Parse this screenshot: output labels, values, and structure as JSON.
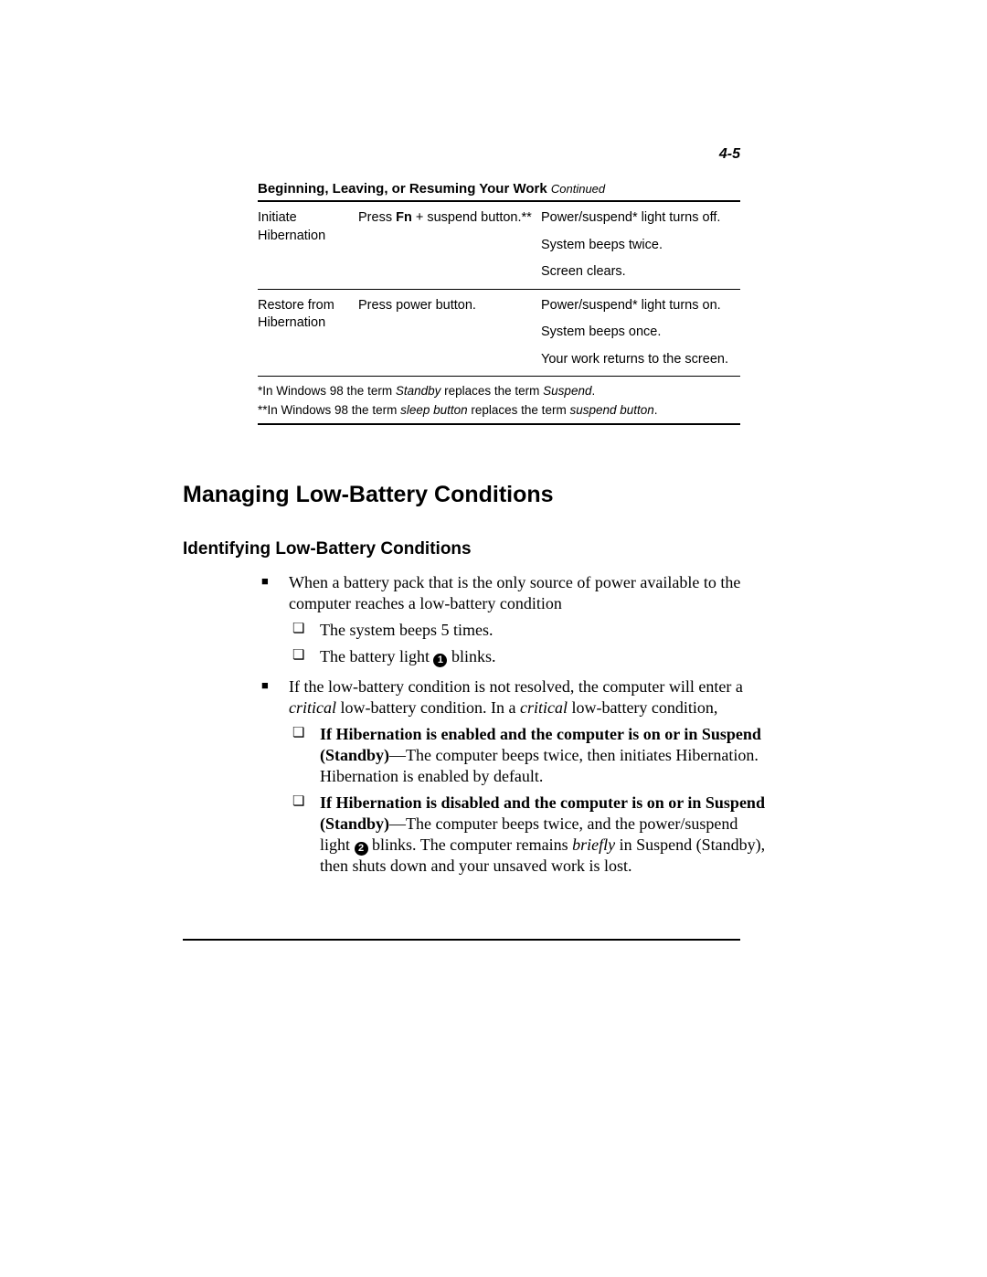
{
  "page_number": "4-5",
  "table": {
    "title": "Beginning, Leaving, or Resuming Your Work",
    "title_suffix": "Continued",
    "rows": [
      {
        "task": "Initiate Hibernation",
        "procedure_pre": "Press ",
        "procedure_bold": "Fn",
        "procedure_post": " + suspend button.**",
        "results": [
          "Power/suspend* light turns off.",
          "System beeps twice.",
          "Screen clears."
        ]
      },
      {
        "task": "Restore from Hibernation",
        "procedure_pre": "Press power button.",
        "procedure_bold": "",
        "procedure_post": "",
        "results": [
          "Power/suspend* light turns on.",
          "System beeps once.",
          "Your work returns to the screen."
        ]
      }
    ],
    "footnote1_pre": "*In Windows 98 the term ",
    "footnote1_it1": "Standby",
    "footnote1_mid": " replaces the term ",
    "footnote1_it2": "Suspend",
    "footnote1_end": ".",
    "footnote2_pre": "**In Windows 98 the term ",
    "footnote2_it1": "sleep button",
    "footnote2_mid": " replaces the term ",
    "footnote2_it2": "suspend button",
    "footnote2_end": "."
  },
  "h1": "Managing Low-Battery Conditions",
  "h2": "Identifying Low-Battery Conditions",
  "bullets": {
    "b1": "When a battery pack that is the only source of power available to the computer reaches a low-battery condition",
    "b1_sub1": "The system beeps 5 times.",
    "b1_sub2_pre": "The battery light ",
    "b1_sub2_num": "1",
    "b1_sub2_post": " blinks.",
    "b2_pre": "If the low-battery condition is not resolved, the computer will enter a ",
    "b2_it1": "critical",
    "b2_mid": " low-battery condition. In a ",
    "b2_it2": "critical",
    "b2_post": " low-battery condition,",
    "b2_sub1_bold": "If Hibernation is enabled and the computer is on or in Suspend (Standby)",
    "b2_sub1_rest": "—The computer beeps twice, then initiates Hibernation. Hibernation is enabled by default.",
    "b2_sub2_bold": "If Hibernation is disabled and the computer is on or in Suspend (Standby)",
    "b2_sub2_mid1": "—The computer beeps twice, and the power/suspend light ",
    "b2_sub2_num": "2",
    "b2_sub2_mid2": " blinks. The computer remains ",
    "b2_sub2_it": "briefly",
    "b2_sub2_end": " in Suspend (Standby), then shuts down and your unsaved work is lost."
  }
}
